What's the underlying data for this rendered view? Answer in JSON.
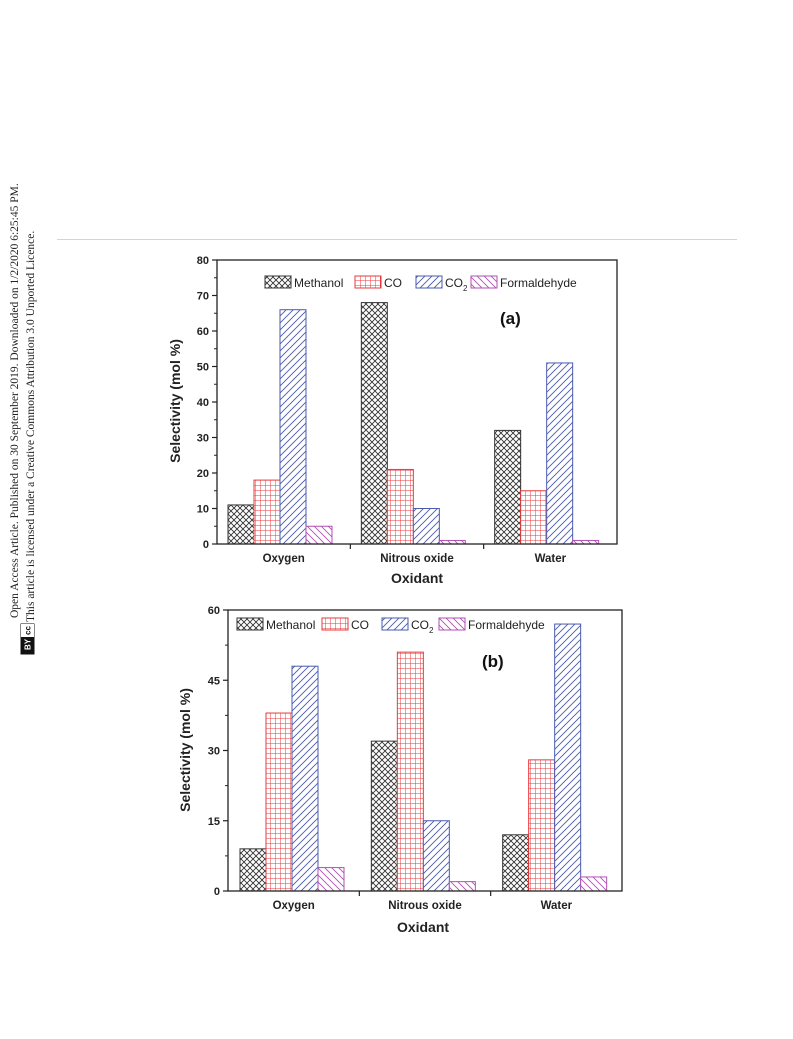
{
  "sidebar": {
    "line1": "Open Access Article. Published on 30 September 2019. Downloaded on 1/2/2020 6:25:45 PM.",
    "line2": "This article is licensed under a Creative Commons Attribution 3.0 Unported Licence.",
    "badge_cc": "cc",
    "badge_by": "BY"
  },
  "colors": {
    "methanol": "#333333",
    "co": "#e8383b",
    "co2": "#4a5bb0",
    "formaldehyde": "#b24fb6",
    "rule": "#d6d6c8"
  },
  "chart_data": [
    {
      "type": "bar",
      "panel_label": "(a)",
      "categories": [
        "Oxygen",
        "Nitrous oxide",
        "Water"
      ],
      "xlabel": "Oxidant",
      "ylabel": "Selectivity (mol %)",
      "ylim": [
        0,
        80
      ],
      "yticks": [
        0,
        10,
        20,
        30,
        40,
        50,
        60,
        70,
        80
      ],
      "legend_placement": "top",
      "series": [
        {
          "name": "Methanol",
          "pattern": "crosshatch",
          "values": [
            11,
            68,
            32
          ]
        },
        {
          "name": "CO",
          "subscript": "",
          "pattern": "grid",
          "values": [
            18,
            21,
            15
          ]
        },
        {
          "name": "CO",
          "subscript": "2",
          "pattern": "diagonal-right",
          "values": [
            66,
            10,
            51
          ]
        },
        {
          "name": "Formaldehyde",
          "pattern": "diagonal-left",
          "values": [
            5,
            1,
            1
          ]
        }
      ]
    },
    {
      "type": "bar",
      "panel_label": "(b)",
      "categories": [
        "Oxygen",
        "Nitrous oxide",
        "Water"
      ],
      "xlabel": "Oxidant",
      "ylabel": "Selectivity (mol %)",
      "ylim": [
        0,
        60
      ],
      "yticks": [
        0,
        15,
        30,
        45,
        60
      ],
      "legend_placement": "top",
      "series": [
        {
          "name": "Methanol",
          "pattern": "crosshatch",
          "values": [
            9,
            32,
            12
          ]
        },
        {
          "name": "CO",
          "subscript": "",
          "pattern": "grid",
          "values": [
            38,
            51,
            28
          ]
        },
        {
          "name": "CO",
          "subscript": "2",
          "pattern": "diagonal-right",
          "values": [
            48,
            15,
            57
          ]
        },
        {
          "name": "Formaldehyde",
          "pattern": "diagonal-left",
          "values": [
            5,
            2,
            3
          ]
        }
      ]
    }
  ]
}
